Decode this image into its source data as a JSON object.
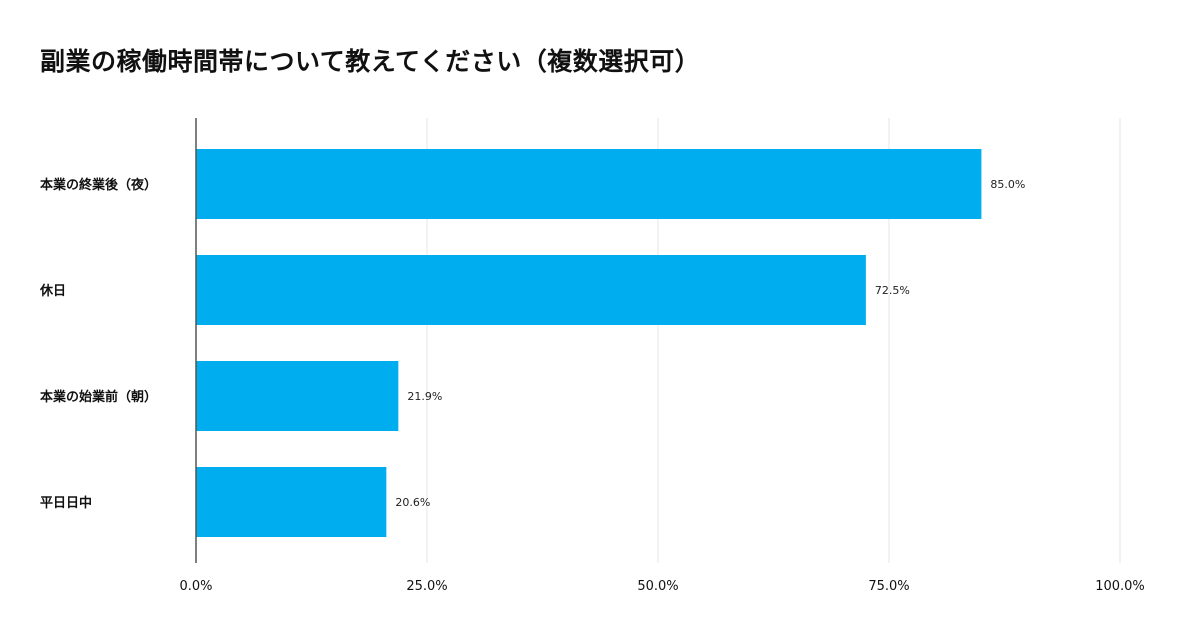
{
  "chart_data": {
    "type": "bar",
    "orientation": "horizontal",
    "title": "副業の稼働時間帯について教えてください（複数選択可）",
    "categories": [
      "本業の終業後（夜）",
      "休日",
      "本業の始業前（朝）",
      "平日日中"
    ],
    "values": [
      85.0,
      72.5,
      21.9,
      20.6
    ],
    "value_labels": [
      "85.0%",
      "72.5%",
      "21.9%",
      "20.6%"
    ],
    "xlim": [
      0,
      100
    ],
    "x_ticks": [
      0,
      25,
      50,
      75,
      100
    ],
    "x_tick_labels": [
      "0.0%",
      "25.0%",
      "50.0%",
      "75.0%",
      "100.0%"
    ],
    "grid": true,
    "bar_color": "#00AEEF",
    "grid_color": "#E6E6E6",
    "axis_color": "#555555"
  }
}
